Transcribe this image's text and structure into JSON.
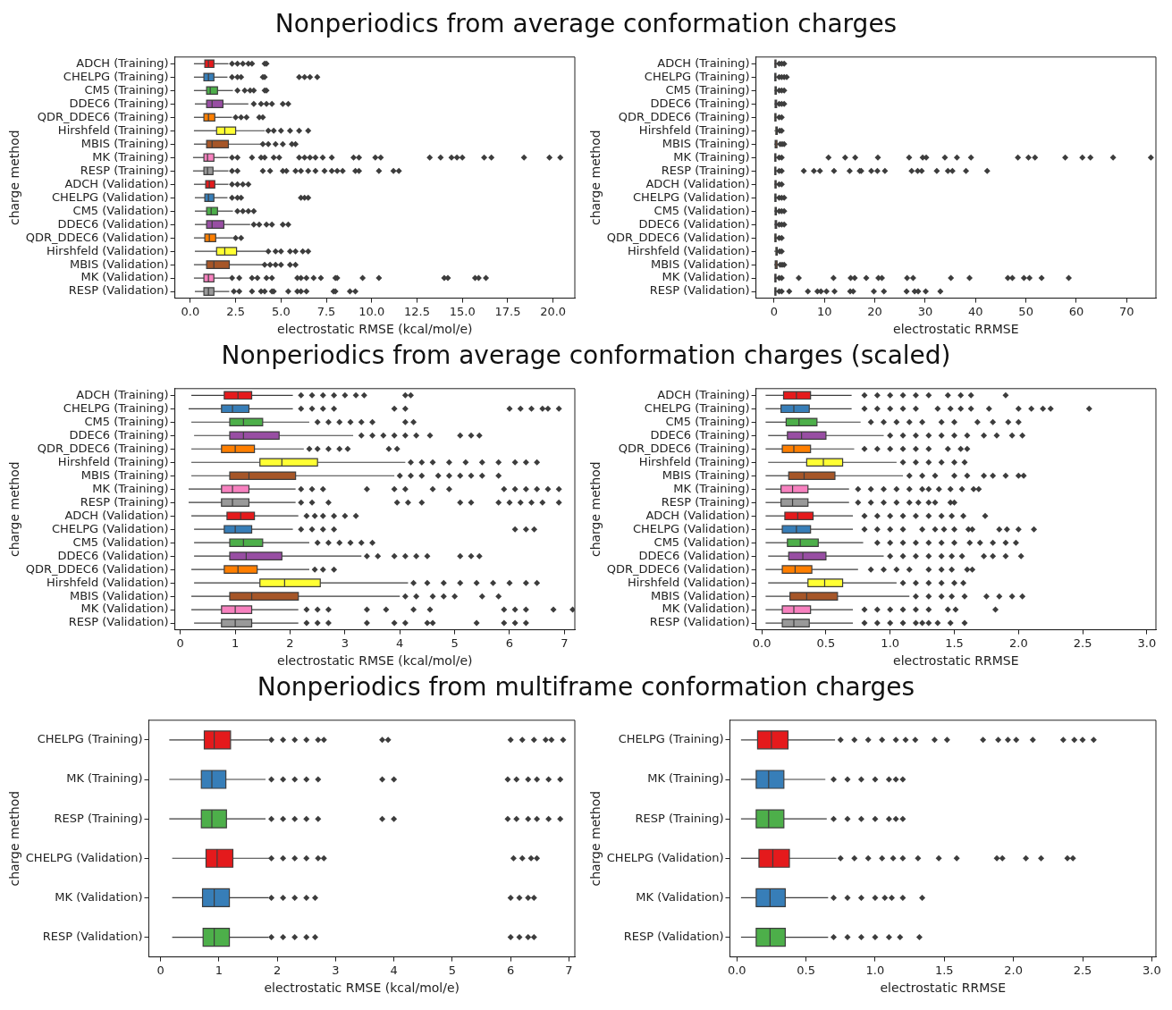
{
  "chart_data": [
    {
      "type": "box",
      "orientation": "horizontal",
      "title": "Nonperiodics from average conformation charges",
      "xlabel": "electrostatic RMSE (kcal/mol/e)",
      "ylabel": "charge method",
      "marker": "diamond",
      "categories": [
        "ADCH (Training)",
        "CHELPG (Training)",
        "CM5 (Training)",
        "DDEC6 (Training)",
        "QDR_DDEC6 (Training)",
        "Hirshfeld (Training)",
        "MBIS (Training)",
        "MK (Training)",
        "RESP (Training)",
        "ADCH (Validation)",
        "CHELPG (Validation)",
        "CM5 (Validation)",
        "DDEC6 (Validation)",
        "QDR_DDEC6 (Validation)",
        "Hirshfeld (Validation)",
        "MBIS (Validation)",
        "MK (Validation)",
        "RESP (Validation)"
      ],
      "colors": [
        "#e41a1c",
        "#377eb8",
        "#4daf4a",
        "#984ea3",
        "#ff7f00",
        "#ffff33",
        "#a65628",
        "#f781bf",
        "#999999",
        "#e41a1c",
        "#377eb8",
        "#4daf4a",
        "#984ea3",
        "#ff7f00",
        "#ffff33",
        "#a65628",
        "#f781bf",
        "#999999"
      ],
      "boxes": [
        {
          "low": 0.2,
          "q1": 0.8,
          "median": 1.0,
          "q3": 1.3,
          "high": 2.1,
          "outliers": [
            2.3,
            2.6,
            2.9,
            3.2,
            3.4,
            4.1,
            4.2
          ]
        },
        {
          "low": 0.2,
          "q1": 0.75,
          "median": 1.0,
          "q3": 1.3,
          "high": 2.05,
          "outliers": [
            2.3,
            2.6,
            2.8,
            4.0,
            4.1,
            6.0,
            6.3,
            6.6,
            7.0
          ]
        },
        {
          "low": 0.2,
          "q1": 0.9,
          "median": 1.1,
          "q3": 1.5,
          "high": 2.35,
          "outliers": [
            2.6,
            3.0,
            3.3,
            3.5,
            4.1,
            4.2
          ]
        },
        {
          "low": 0.25,
          "q1": 0.9,
          "median": 1.2,
          "q3": 1.8,
          "high": 3.2,
          "outliers": [
            3.5,
            3.9,
            4.2,
            4.5,
            5.1,
            5.4
          ]
        },
        {
          "low": 0.2,
          "q1": 0.75,
          "median": 1.0,
          "q3": 1.35,
          "high": 2.3,
          "outliers": [
            2.5,
            2.8,
            3.1,
            3.8,
            4.0
          ]
        },
        {
          "low": 0.2,
          "q1": 1.45,
          "median": 1.9,
          "q3": 2.5,
          "high": 4.1,
          "outliers": [
            4.3,
            4.6,
            5.0,
            5.5,
            6.0,
            6.5
          ]
        },
        {
          "low": 0.2,
          "q1": 0.9,
          "median": 1.2,
          "q3": 2.1,
          "high": 3.9,
          "outliers": [
            4.0,
            4.3,
            4.7,
            5.1,
            5.6,
            5.8
          ]
        },
        {
          "low": 0.15,
          "q1": 0.75,
          "median": 0.95,
          "q3": 1.3,
          "high": 2.1,
          "outliers": [
            2.3,
            2.6,
            3.4,
            3.9,
            4.1,
            4.6,
            4.9,
            6.0,
            6.3,
            6.6,
            6.9,
            7.3,
            7.8,
            9.0,
            9.3,
            10.2,
            10.5,
            13.2,
            13.8,
            14.4,
            14.7,
            15.0,
            16.2,
            16.6,
            18.4,
            19.8,
            20.4
          ]
        },
        {
          "low": 0.15,
          "q1": 0.75,
          "median": 0.95,
          "q3": 1.25,
          "high": 2.1,
          "outliers": [
            2.3,
            2.6,
            4.0,
            4.4,
            5.1,
            5.3,
            5.8,
            6.1,
            6.5,
            6.9,
            7.4,
            7.8,
            8.1,
            8.4,
            9.1,
            9.3,
            10.4,
            11.2,
            11.5
          ]
        },
        {
          "low": 0.2,
          "q1": 0.85,
          "median": 1.05,
          "q3": 1.35,
          "high": 2.1,
          "outliers": [
            2.3,
            2.6,
            2.9,
            3.2
          ]
        },
        {
          "low": 0.25,
          "q1": 0.8,
          "median": 1.0,
          "q3": 1.3,
          "high": 2.05,
          "outliers": [
            2.3,
            2.6,
            2.8,
            6.1,
            6.3,
            6.5
          ]
        },
        {
          "low": 0.25,
          "q1": 0.9,
          "median": 1.15,
          "q3": 1.5,
          "high": 2.35,
          "outliers": [
            2.6,
            2.9,
            3.2,
            3.5
          ]
        },
        {
          "low": 0.25,
          "q1": 0.9,
          "median": 1.2,
          "q3": 1.85,
          "high": 3.3,
          "outliers": [
            3.5,
            3.8,
            4.2,
            4.5,
            5.1,
            5.4
          ]
        },
        {
          "low": 0.2,
          "q1": 0.8,
          "median": 1.05,
          "q3": 1.4,
          "high": 2.35,
          "outliers": [
            2.5,
            2.8
          ]
        },
        {
          "low": 0.25,
          "q1": 1.45,
          "median": 1.9,
          "q3": 2.55,
          "high": 4.15,
          "outliers": [
            4.3,
            4.7,
            5.0,
            5.5,
            5.8,
            6.2,
            6.5
          ]
        },
        {
          "low": 0.2,
          "q1": 0.9,
          "median": 1.3,
          "q3": 2.15,
          "high": 4.0,
          "outliers": [
            4.1,
            4.4,
            4.7,
            5.0,
            5.5,
            5.8
          ]
        },
        {
          "low": 0.2,
          "q1": 0.75,
          "median": 1.0,
          "q3": 1.3,
          "high": 2.15,
          "outliers": [
            2.3,
            2.7,
            3.4,
            3.7,
            4.2,
            4.5,
            5.9,
            6.1,
            6.4,
            6.8,
            7.2,
            8.0,
            8.1,
            9.5,
            10.4,
            14.0,
            14.2,
            15.7,
            15.9,
            16.3
          ]
        },
        {
          "low": 0.25,
          "q1": 0.75,
          "median": 1.0,
          "q3": 1.3,
          "high": 2.15,
          "outliers": [
            2.4,
            2.7,
            3.4,
            3.9,
            4.1,
            4.5,
            4.6,
            5.4,
            5.9,
            6.1,
            6.4,
            7.9,
            8.0,
            8.8,
            9.1
          ]
        }
      ],
      "xlim": [
        -0.85,
        21.2
      ],
      "xticks": [
        {
          "value": 0,
          "label": "0.0"
        },
        2.5,
        {
          "value": 5,
          "label": "5.0"
        },
        7.5,
        {
          "value": 10,
          "label": "10.0"
        },
        12.5,
        {
          "value": 15,
          "label": "15.0"
        },
        17.5,
        {
          "value": 20,
          "label": "20.0"
        }
      ]
    },
    {
      "type": "box",
      "orientation": "horizontal",
      "xlabel": "electrostatic RRMSE",
      "ylabel": "charge method",
      "marker": "diamond",
      "categories": [
        "ADCH (Training)",
        "CHELPG (Training)",
        "CM5 (Training)",
        "DDEC6 (Training)",
        "QDR_DDEC6 (Training)",
        "Hirshfeld (Training)",
        "MBIS (Training)",
        "MK (Training)",
        "RESP (Training)",
        "ADCH (Validation)",
        "CHELPG (Validation)",
        "CM5 (Validation)",
        "DDEC6 (Validation)",
        "QDR_DDEC6 (Validation)",
        "Hirshfeld (Validation)",
        "MBIS (Validation)",
        "MK (Validation)",
        "RESP (Validation)"
      ],
      "colors": [
        "#e41a1c",
        "#377eb8",
        "#4daf4a",
        "#984ea3",
        "#ff7f00",
        "#ffff33",
        "#a65628",
        "#f781bf",
        "#999999",
        "#e41a1c",
        "#377eb8",
        "#4daf4a",
        "#984ea3",
        "#ff7f00",
        "#ffff33",
        "#a65628",
        "#f781bf",
        "#999999"
      ],
      "boxes": [
        {
          "low": 0.03,
          "q1": 0.17,
          "median": 0.27,
          "q3": 0.38,
          "high": 0.7,
          "outliers": [
            1,
            1.5,
            2
          ]
        },
        {
          "low": 0.03,
          "q1": 0.15,
          "median": 0.25,
          "q3": 0.37,
          "high": 0.7,
          "outliers": [
            1,
            1.5,
            2,
            2.5
          ]
        },
        {
          "low": 0.03,
          "q1": 0.19,
          "median": 0.29,
          "q3": 0.43,
          "high": 0.77,
          "outliers": [
            1,
            1.5,
            2
          ]
        },
        {
          "low": 0.05,
          "q1": 0.2,
          "median": 0.31,
          "q3": 0.5,
          "high": 0.95,
          "outliers": [
            1,
            1.5,
            2
          ]
        },
        {
          "low": 0.03,
          "q1": 0.16,
          "median": 0.25,
          "q3": 0.38,
          "high": 0.72,
          "outliers": [
            1,
            1.5
          ]
        },
        {
          "low": 0.05,
          "q1": 0.35,
          "median": 0.48,
          "q3": 0.63,
          "high": 1.05,
          "outliers": [
            1.1,
            1.5
          ]
        },
        {
          "low": 0.03,
          "q1": 0.21,
          "median": 0.33,
          "q3": 0.57,
          "high": 1.1,
          "outliers": [
            1.2,
            1.6,
            2
          ]
        },
        {
          "low": 0.03,
          "q1": 0.15,
          "median": 0.24,
          "q3": 0.36,
          "high": 0.68,
          "outliers": [
            1,
            1.5,
            10.8,
            14.1,
            16.1,
            20.6,
            26.8,
            29.5,
            30.2,
            33.9,
            36.3,
            39.1,
            48.4,
            50.5,
            51.8,
            57.8,
            61.2,
            62.8,
            67.3,
            74.8
          ]
        },
        {
          "low": 0.03,
          "q1": 0.15,
          "median": 0.24,
          "q3": 0.36,
          "high": 0.68,
          "outliers": [
            1,
            1.5,
            5.9,
            7.9,
            9.1,
            11.9,
            15.0,
            17.0,
            17.3,
            19.3,
            20.5,
            22.0,
            27.3,
            28.5,
            29.3,
            32.3,
            34.5,
            35.4,
            38.1,
            42.3
          ]
        },
        {
          "low": 0.03,
          "q1": 0.18,
          "median": 0.28,
          "q3": 0.4,
          "high": 0.71,
          "outliers": [
            1,
            1.5
          ]
        },
        {
          "low": 0.03,
          "q1": 0.16,
          "median": 0.27,
          "q3": 0.38,
          "high": 0.71,
          "outliers": [
            1,
            1.5,
            2
          ]
        },
        {
          "low": 0.03,
          "q1": 0.2,
          "median": 0.3,
          "q3": 0.44,
          "high": 0.79,
          "outliers": [
            1,
            1.5,
            2
          ]
        },
        {
          "low": 0.05,
          "q1": 0.21,
          "median": 0.32,
          "q3": 0.5,
          "high": 0.95,
          "outliers": [
            1,
            1.5,
            2
          ]
        },
        {
          "low": 0.03,
          "q1": 0.16,
          "median": 0.26,
          "q3": 0.39,
          "high": 0.75,
          "outliers": [
            1,
            1.5
          ]
        },
        {
          "low": 0.05,
          "q1": 0.36,
          "median": 0.49,
          "q3": 0.63,
          "high": 1.05,
          "outliers": [
            1.1,
            1.5
          ]
        },
        {
          "low": 0.03,
          "q1": 0.22,
          "median": 0.35,
          "q3": 0.59,
          "high": 1.15,
          "outliers": [
            1.2,
            1.6,
            2
          ]
        },
        {
          "low": 0.03,
          "q1": 0.16,
          "median": 0.25,
          "q3": 0.38,
          "high": 0.71,
          "outliers": [
            1,
            1.5,
            4.9,
            11.8,
            15.2,
            16.0,
            18.3,
            20.7,
            21.4,
            26.4,
            27.6,
            35.1,
            38.8,
            46.4,
            47.3,
            49.6,
            50.7,
            53.1,
            58.5
          ]
        },
        {
          "low": 0.03,
          "q1": 0.16,
          "median": 0.25,
          "q3": 0.37,
          "high": 0.71,
          "outliers": [
            1,
            1.5,
            3.0,
            6.7,
            8.6,
            9.3,
            10.4,
            12.0,
            15.1,
            15.7,
            19.8,
            21.8,
            26.3,
            27.9,
            28.6,
            30.1,
            33.0
          ]
        }
      ],
      "xlim": [
        -3.6,
        75.8
      ],
      "xticks": [
        0,
        10,
        20,
        30,
        40,
        50,
        60,
        70
      ]
    },
    {
      "type": "box",
      "orientation": "horizontal",
      "title": "Nonperiodics from average conformation charges (scaled)",
      "xlabel": "electrostatic RMSE (kcal/mol/e)",
      "ylabel": "charge method",
      "marker": "diamond",
      "categories": [
        "ADCH (Training)",
        "CHELPG (Training)",
        "CM5 (Training)",
        "DDEC6 (Training)",
        "QDR_DDEC6 (Training)",
        "Hirshfeld (Training)",
        "MBIS (Training)",
        "MK (Training)",
        "RESP (Training)",
        "ADCH (Validation)",
        "CHELPG (Validation)",
        "CM5 (Validation)",
        "DDEC6 (Validation)",
        "QDR_DDEC6 (Validation)",
        "Hirshfeld (Validation)",
        "MBIS (Validation)",
        "MK (Validation)",
        "RESP (Validation)"
      ],
      "colors": [
        "#e41a1c",
        "#377eb8",
        "#4daf4a",
        "#984ea3",
        "#ff7f00",
        "#ffff33",
        "#a65628",
        "#f781bf",
        "#999999",
        "#e41a1c",
        "#377eb8",
        "#4daf4a",
        "#984ea3",
        "#ff7f00",
        "#ffff33",
        "#a65628",
        "#f781bf",
        "#999999"
      ],
      "boxes": [
        {
          "low": 0.2,
          "q1": 0.8,
          "median": 1.05,
          "q3": 1.3,
          "high": 2.05,
          "outliers": [
            2.2,
            2.4,
            2.6,
            2.8,
            3.0,
            3.2,
            3.35,
            4.1,
            4.2
          ]
        },
        {
          "low": 0.15,
          "q1": 0.75,
          "median": 0.95,
          "q3": 1.25,
          "high": 2.05,
          "outliers": [
            2.2,
            2.4,
            2.6,
            2.8,
            3.9,
            4.1,
            6.0,
            6.2,
            6.4,
            6.6,
            6.7,
            6.9
          ]
        },
        {
          "low": 0.2,
          "q1": 0.9,
          "median": 1.15,
          "q3": 1.5,
          "high": 2.35,
          "outliers": [
            2.5,
            2.7,
            2.9,
            3.1,
            3.3,
            3.5,
            4.1,
            4.25
          ]
        },
        {
          "low": 0.25,
          "q1": 0.9,
          "median": 1.15,
          "q3": 1.8,
          "high": 3.15,
          "outliers": [
            3.3,
            3.5,
            3.7,
            3.9,
            4.1,
            4.3,
            4.55,
            5.1,
            5.3,
            5.45
          ]
        },
        {
          "low": 0.2,
          "q1": 0.75,
          "median": 1.0,
          "q3": 1.35,
          "high": 2.25,
          "outliers": [
            2.35,
            2.5,
            2.7,
            2.9,
            3.05,
            3.8,
            3.95
          ]
        },
        {
          "low": 0.2,
          "q1": 1.45,
          "median": 1.85,
          "q3": 2.5,
          "high": 4.1,
          "outliers": [
            4.2,
            4.4,
            4.6,
            4.9,
            5.2,
            5.5,
            5.8,
            6.1,
            6.3,
            6.5
          ]
        },
        {
          "low": 0.2,
          "q1": 0.9,
          "median": 1.25,
          "q3": 2.1,
          "high": 3.9,
          "outliers": [
            4.0,
            4.2,
            4.4,
            4.7,
            4.9,
            5.1,
            5.3,
            5.5,
            5.8
          ]
        },
        {
          "low": 0.15,
          "q1": 0.75,
          "median": 0.95,
          "q3": 1.25,
          "high": 2.1,
          "outliers": [
            2.2,
            2.4,
            2.6,
            3.4,
            3.9,
            4.1,
            4.6,
            4.9,
            5.9,
            6.1,
            6.3,
            6.5,
            6.7,
            6.9
          ]
        },
        {
          "low": 0.15,
          "q1": 0.75,
          "median": 0.95,
          "q3": 1.25,
          "high": 2.1,
          "outliers": [
            2.2,
            2.4,
            2.7,
            3.95,
            4.15,
            4.4,
            5.1,
            5.3,
            5.8,
            6.0,
            6.2,
            6.4,
            6.6,
            6.9
          ]
        },
        {
          "low": 0.2,
          "q1": 0.85,
          "median": 1.1,
          "q3": 1.35,
          "high": 2.15,
          "outliers": [
            2.3,
            2.45,
            2.6,
            2.8,
            3.0,
            3.2
          ]
        },
        {
          "low": 0.25,
          "q1": 0.8,
          "median": 1.0,
          "q3": 1.3,
          "high": 2.05,
          "outliers": [
            2.2,
            2.4,
            2.6,
            2.8,
            6.1,
            6.3,
            6.45
          ]
        },
        {
          "low": 0.25,
          "q1": 0.9,
          "median": 1.15,
          "q3": 1.5,
          "high": 2.35,
          "outliers": [
            2.5,
            2.7,
            2.9,
            3.1,
            3.3,
            3.5
          ]
        },
        {
          "low": 0.25,
          "q1": 0.9,
          "median": 1.2,
          "q3": 1.85,
          "high": 3.3,
          "outliers": [
            3.4,
            3.6,
            3.9,
            4.1,
            4.3,
            4.5,
            5.1,
            5.3,
            5.45
          ]
        },
        {
          "low": 0.2,
          "q1": 0.8,
          "median": 1.05,
          "q3": 1.4,
          "high": 2.35,
          "outliers": [
            2.45,
            2.6,
            2.8
          ]
        },
        {
          "low": 0.25,
          "q1": 1.45,
          "median": 1.9,
          "q3": 2.55,
          "high": 4.15,
          "outliers": [
            4.25,
            4.5,
            4.8,
            5.1,
            5.4,
            5.7,
            6.0,
            6.3,
            6.5
          ]
        },
        {
          "low": 0.2,
          "q1": 0.9,
          "median": 1.3,
          "q3": 2.15,
          "high": 4.0,
          "outliers": [
            4.1,
            4.3,
            4.6,
            4.8,
            5.0,
            5.5,
            5.8
          ]
        },
        {
          "low": 0.2,
          "q1": 0.75,
          "median": 1.0,
          "q3": 1.3,
          "high": 2.15,
          "outliers": [
            2.3,
            2.5,
            2.7,
            3.4,
            3.75,
            4.25,
            4.55,
            5.9,
            6.1,
            6.3,
            6.8,
            7.15
          ]
        },
        {
          "low": 0.25,
          "q1": 0.75,
          "median": 1.0,
          "q3": 1.3,
          "high": 2.15,
          "outliers": [
            2.3,
            2.5,
            2.7,
            3.4,
            3.9,
            4.1,
            4.5,
            4.6,
            5.4,
            5.9,
            6.1,
            6.3
          ]
        }
      ],
      "xlim": [
        -0.1,
        7.19
      ],
      "xticks": [
        0,
        1,
        2,
        3,
        4,
        5,
        6,
        7
      ]
    },
    {
      "type": "box",
      "orientation": "horizontal",
      "xlabel": "electrostatic RRMSE",
      "ylabel": "charge method",
      "marker": "diamond",
      "categories": [
        "ADCH (Training)",
        "CHELPG (Training)",
        "CM5 (Training)",
        "DDEC6 (Training)",
        "QDR_DDEC6 (Training)",
        "Hirshfeld (Training)",
        "MBIS (Training)",
        "MK (Training)",
        "RESP (Training)",
        "ADCH (Validation)",
        "CHELPG (Validation)",
        "CM5 (Validation)",
        "DDEC6 (Validation)",
        "QDR_DDEC6 (Validation)",
        "Hirshfeld (Validation)",
        "MBIS (Validation)",
        "MK (Validation)",
        "RESP (Validation)"
      ],
      "colors": [
        "#e41a1c",
        "#377eb8",
        "#4daf4a",
        "#984ea3",
        "#ff7f00",
        "#ffff33",
        "#a65628",
        "#f781bf",
        "#999999",
        "#e41a1c",
        "#377eb8",
        "#4daf4a",
        "#984ea3",
        "#ff7f00",
        "#ffff33",
        "#a65628",
        "#f781bf",
        "#999999"
      ],
      "boxes": [
        {
          "low": 0.03,
          "q1": 0.17,
          "median": 0.27,
          "q3": 0.38,
          "high": 0.7,
          "outliers": [
            0.8,
            0.9,
            1.0,
            1.1,
            1.2,
            1.3,
            1.45,
            1.55,
            1.63,
            1.9
          ]
        },
        {
          "low": 0.03,
          "q1": 0.15,
          "median": 0.25,
          "q3": 0.37,
          "high": 0.7,
          "outliers": [
            0.8,
            0.9,
            1.0,
            1.1,
            1.2,
            1.37,
            1.47,
            1.55,
            1.63,
            1.77,
            2.0,
            2.1,
            2.19,
            2.25,
            2.55
          ]
        },
        {
          "low": 0.03,
          "q1": 0.19,
          "median": 0.29,
          "q3": 0.43,
          "high": 0.77,
          "outliers": [
            0.85,
            0.95,
            1.05,
            1.15,
            1.25,
            1.4,
            1.5,
            1.68,
            1.8,
            1.92,
            2.0
          ]
        },
        {
          "low": 0.05,
          "q1": 0.2,
          "median": 0.31,
          "q3": 0.5,
          "high": 0.95,
          "outliers": [
            1.0,
            1.1,
            1.2,
            1.3,
            1.4,
            1.5,
            1.6,
            1.73,
            1.83,
            1.95,
            2.03
          ]
        },
        {
          "low": 0.03,
          "q1": 0.16,
          "median": 0.25,
          "q3": 0.38,
          "high": 0.72,
          "outliers": [
            0.8,
            0.9,
            1.0,
            1.1,
            1.2,
            1.3,
            1.45,
            1.55,
            1.6
          ]
        },
        {
          "low": 0.05,
          "q1": 0.35,
          "median": 0.48,
          "q3": 0.63,
          "high": 1.05,
          "outliers": [
            1.1,
            1.2,
            1.3,
            1.4,
            1.5,
            1.58
          ]
        },
        {
          "low": 0.03,
          "q1": 0.21,
          "median": 0.33,
          "q3": 0.57,
          "high": 1.1,
          "outliers": [
            1.15,
            1.25,
            1.35,
            1.5,
            1.6,
            1.73,
            1.8,
            1.9,
            2.0,
            2.04
          ]
        },
        {
          "low": 0.03,
          "q1": 0.15,
          "median": 0.24,
          "q3": 0.36,
          "high": 0.68,
          "outliers": [
            0.75,
            0.85,
            0.95,
            1.05,
            1.15,
            1.25,
            1.3,
            1.38,
            1.47,
            1.56,
            1.65,
            1.69
          ]
        },
        {
          "low": 0.03,
          "q1": 0.15,
          "median": 0.24,
          "q3": 0.36,
          "high": 0.68,
          "outliers": [
            0.75,
            0.85,
            0.95,
            1.05,
            1.15,
            1.22,
            1.3,
            1.35,
            1.47,
            1.5
          ]
        },
        {
          "low": 0.03,
          "q1": 0.18,
          "median": 0.28,
          "q3": 0.4,
          "high": 0.71,
          "outliers": [
            0.8,
            0.9,
            1.0,
            1.1,
            1.2,
            1.3,
            1.4,
            1.48,
            1.57,
            1.74
          ]
        },
        {
          "low": 0.03,
          "q1": 0.16,
          "median": 0.27,
          "q3": 0.38,
          "high": 0.71,
          "outliers": [
            0.8,
            0.9,
            1.0,
            1.1,
            1.25,
            1.35,
            1.42,
            1.5,
            1.61,
            1.64,
            1.85,
            1.91,
            2.0,
            2.12
          ]
        },
        {
          "low": 0.03,
          "q1": 0.2,
          "median": 0.3,
          "q3": 0.44,
          "high": 0.79,
          "outliers": [
            0.9,
            1.0,
            1.1,
            1.2,
            1.3,
            1.4,
            1.5,
            1.62,
            1.7,
            1.8,
            1.9,
            1.98
          ]
        },
        {
          "low": 0.05,
          "q1": 0.21,
          "median": 0.32,
          "q3": 0.5,
          "high": 0.95,
          "outliers": [
            1.0,
            1.1,
            1.2,
            1.3,
            1.4,
            1.48,
            1.56,
            1.73,
            1.8,
            1.9,
            2.02
          ]
        },
        {
          "low": 0.03,
          "q1": 0.16,
          "median": 0.26,
          "q3": 0.39,
          "high": 0.75,
          "outliers": [
            0.85,
            0.95,
            1.05,
            1.15,
            1.3,
            1.4,
            1.48,
            1.6,
            1.64
          ]
        },
        {
          "low": 0.05,
          "q1": 0.36,
          "median": 0.49,
          "q3": 0.63,
          "high": 1.05,
          "outliers": [
            1.1,
            1.2,
            1.3,
            1.4,
            1.5,
            1.57
          ]
        },
        {
          "low": 0.03,
          "q1": 0.22,
          "median": 0.35,
          "q3": 0.59,
          "high": 1.15,
          "outliers": [
            1.2,
            1.3,
            1.4,
            1.48,
            1.58,
            1.75,
            1.85,
            1.95,
            2.03
          ]
        },
        {
          "low": 0.03,
          "q1": 0.16,
          "median": 0.25,
          "q3": 0.38,
          "high": 0.71,
          "outliers": [
            0.8,
            0.9,
            1.0,
            1.1,
            1.2,
            1.3,
            1.45,
            1.51,
            1.82
          ]
        },
        {
          "low": 0.03,
          "q1": 0.16,
          "median": 0.25,
          "q3": 0.37,
          "high": 0.71,
          "outliers": [
            0.8,
            0.9,
            1.0,
            1.1,
            1.2,
            1.25,
            1.3,
            1.37,
            1.47,
            1.58
          ]
        }
      ],
      "xlim": [
        -0.045,
        3.07
      ],
      "xticks": [
        {
          "value": 0,
          "label": "0.0"
        },
        0.5,
        {
          "value": 1,
          "label": "1.0"
        },
        1.5,
        {
          "value": 2,
          "label": "2.0"
        },
        2.5,
        {
          "value": 3,
          "label": "3.0"
        }
      ]
    },
    {
      "type": "box",
      "orientation": "horizontal",
      "title": "Nonperiodics from multiframe conformation charges",
      "xlabel": "electrostatic RMSE (kcal/mol/e)",
      "ylabel": "charge method",
      "marker": "diamond",
      "categories": [
        "CHELPG (Training)",
        "MK (Training)",
        "RESP (Training)",
        "CHELPG (Validation)",
        "MK (Validation)",
        "RESP (Validation)"
      ],
      "colors": [
        "#e41a1c",
        "#377eb8",
        "#4daf4a",
        "#e41a1c",
        "#377eb8",
        "#4daf4a"
      ],
      "boxes": [
        {
          "low": 0.15,
          "q1": 0.75,
          "median": 0.92,
          "q3": 1.2,
          "high": 1.85,
          "outliers": [
            1.9,
            2.1,
            2.3,
            2.5,
            2.7,
            2.8,
            3.8,
            3.9,
            6.0,
            6.2,
            6.4,
            6.6,
            6.7,
            6.9
          ]
        },
        {
          "low": 0.15,
          "q1": 0.7,
          "median": 0.88,
          "q3": 1.12,
          "high": 1.8,
          "outliers": [
            1.9,
            2.1,
            2.3,
            2.5,
            2.7,
            3.8,
            4.0,
            5.95,
            6.1,
            6.3,
            6.45,
            6.65,
            6.85
          ]
        },
        {
          "low": 0.15,
          "q1": 0.7,
          "median": 0.88,
          "q3": 1.13,
          "high": 1.8,
          "outliers": [
            1.9,
            2.1,
            2.3,
            2.5,
            2.7,
            3.8,
            4.0,
            5.95,
            6.1,
            6.3,
            6.45,
            6.65,
            6.85
          ]
        },
        {
          "low": 0.2,
          "q1": 0.78,
          "median": 0.97,
          "q3": 1.24,
          "high": 1.88,
          "outliers": [
            1.9,
            2.1,
            2.3,
            2.5,
            2.7,
            2.8,
            6.05,
            6.2,
            6.35,
            6.45
          ]
        },
        {
          "low": 0.2,
          "q1": 0.72,
          "median": 0.92,
          "q3": 1.18,
          "high": 1.85,
          "outliers": [
            1.9,
            2.1,
            2.3,
            2.5,
            2.65,
            6.0,
            6.15,
            6.3,
            6.4
          ]
        },
        {
          "low": 0.2,
          "q1": 0.73,
          "median": 0.92,
          "q3": 1.18,
          "high": 1.85,
          "outliers": [
            1.9,
            2.1,
            2.3,
            2.5,
            2.65,
            6.0,
            6.15,
            6.3,
            6.4
          ]
        }
      ],
      "xlim": [
        -0.2,
        7.1
      ],
      "xticks": [
        0,
        1,
        2,
        3,
        4,
        5,
        6,
        7
      ]
    },
    {
      "type": "box",
      "orientation": "horizontal",
      "xlabel": "electrostatic RRMSE",
      "ylabel": "charge method",
      "marker": "diamond",
      "categories": [
        "CHELPG (Training)",
        "MK (Training)",
        "RESP (Training)",
        "CHELPG (Validation)",
        "MK (Validation)",
        "RESP (Validation)"
      ],
      "colors": [
        "#e41a1c",
        "#377eb8",
        "#4daf4a",
        "#e41a1c",
        "#377eb8",
        "#4daf4a"
      ],
      "boxes": [
        {
          "low": 0.03,
          "q1": 0.15,
          "median": 0.25,
          "q3": 0.37,
          "high": 0.71,
          "outliers": [
            0.75,
            0.85,
            0.95,
            1.05,
            1.15,
            1.22,
            1.29,
            1.43,
            1.52,
            1.78,
            1.89,
            1.96,
            2.02,
            2.14,
            2.36,
            2.44,
            2.5,
            2.58
          ]
        },
        {
          "low": 0.03,
          "q1": 0.14,
          "median": 0.23,
          "q3": 0.34,
          "high": 0.64,
          "outliers": [
            0.7,
            0.8,
            0.9,
            1.0,
            1.1,
            1.15,
            1.2
          ]
        },
        {
          "low": 0.03,
          "q1": 0.14,
          "median": 0.23,
          "q3": 0.34,
          "high": 0.65,
          "outliers": [
            0.7,
            0.8,
            0.9,
            1.0,
            1.1,
            1.15,
            1.2
          ]
        },
        {
          "low": 0.03,
          "q1": 0.16,
          "median": 0.26,
          "q3": 0.38,
          "high": 0.72,
          "outliers": [
            0.75,
            0.85,
            0.95,
            1.05,
            1.13,
            1.2,
            1.31,
            1.46,
            1.59,
            1.88,
            1.92,
            2.09,
            2.2,
            2.39,
            2.43
          ]
        },
        {
          "low": 0.03,
          "q1": 0.14,
          "median": 0.24,
          "q3": 0.35,
          "high": 0.66,
          "outliers": [
            0.7,
            0.8,
            0.9,
            1.0,
            1.07,
            1.12,
            1.2,
            1.34
          ]
        },
        {
          "low": 0.03,
          "q1": 0.14,
          "median": 0.24,
          "q3": 0.35,
          "high": 0.66,
          "outliers": [
            0.7,
            0.8,
            0.9,
            1.0,
            1.1,
            1.18,
            1.32
          ]
        }
      ],
      "xlim": [
        -0.05,
        3.03
      ],
      "xticks": [
        {
          "value": 0,
          "label": "0.0"
        },
        0.5,
        {
          "value": 1,
          "label": "1.0"
        },
        1.5,
        {
          "value": 2,
          "label": "2.0"
        },
        2.5,
        {
          "value": 3,
          "label": "3.0"
        }
      ]
    }
  ]
}
